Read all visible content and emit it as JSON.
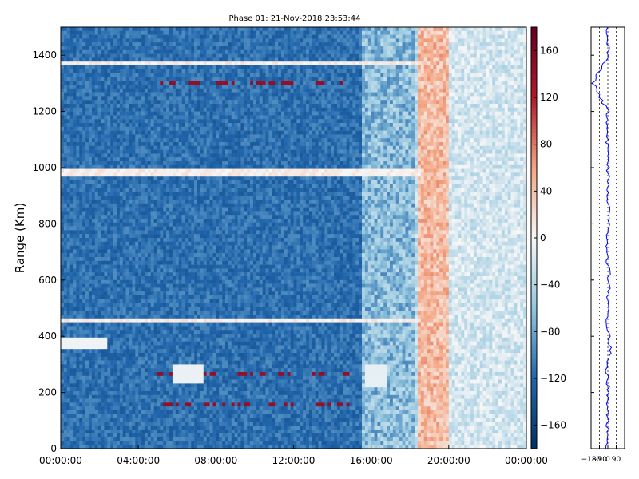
{
  "chart_data": [
    {
      "type": "heatmap",
      "title": "Phase 01: 21-Nov-2018 23:53:44",
      "xlabel": "",
      "ylabel": "Range (Km)",
      "x_ticks": [
        "00:00:00",
        "04:00:00",
        "08:00:00",
        "12:00:00",
        "16:00:00",
        "20:00:00",
        "00:00:00"
      ],
      "x_range_hours": [
        0,
        24
      ],
      "y_ticks": [
        0,
        200,
        400,
        600,
        800,
        1000,
        1200,
        1400
      ],
      "ylim": [
        0,
        1500
      ],
      "colorbar": {
        "ticks": [
          160,
          120,
          80,
          40,
          0,
          -40,
          -80,
          -120,
          -160
        ],
        "range": [
          -180,
          180
        ],
        "colors": {
          "min": "#053061",
          "low": "#2166ac",
          "midlow": "#92c5de",
          "mid": "#f7f7f7",
          "midhigh": "#f4a582",
          "high": "#b2182b",
          "max": "#67001f"
        }
      },
      "features": {
        "low_phase_region_hours": [
          0,
          18.3
        ],
        "high_phase_band_hours": [
          18.4,
          20.0
        ],
        "transition_region_hours": [
          20.0,
          24
        ],
        "bright_streak_ranges": [
          460,
          1370,
          980
        ],
        "red_streak_ranges": [
          1300,
          160,
          270
        ]
      }
    },
    {
      "type": "line",
      "title": "",
      "xlabel": "",
      "ylabel": "",
      "x_ticks": [
        "−180",
        "−90",
        "0",
        "90"
      ],
      "xlim": [
        -180,
        180
      ],
      "ylim": [
        0,
        1500
      ],
      "series_color": "#0000ff",
      "profile_description_values": {
        "range": [
          0,
          100,
          200,
          300,
          350,
          400,
          450,
          500,
          600,
          700,
          800,
          900,
          1000,
          1100,
          1200,
          1300,
          1400,
          1500
        ],
        "phase": [
          -10,
          0,
          5,
          -20,
          30,
          10,
          -5,
          0,
          15,
          -10,
          10,
          -5,
          5,
          -10,
          0,
          -160,
          5,
          -5
        ]
      }
    }
  ]
}
